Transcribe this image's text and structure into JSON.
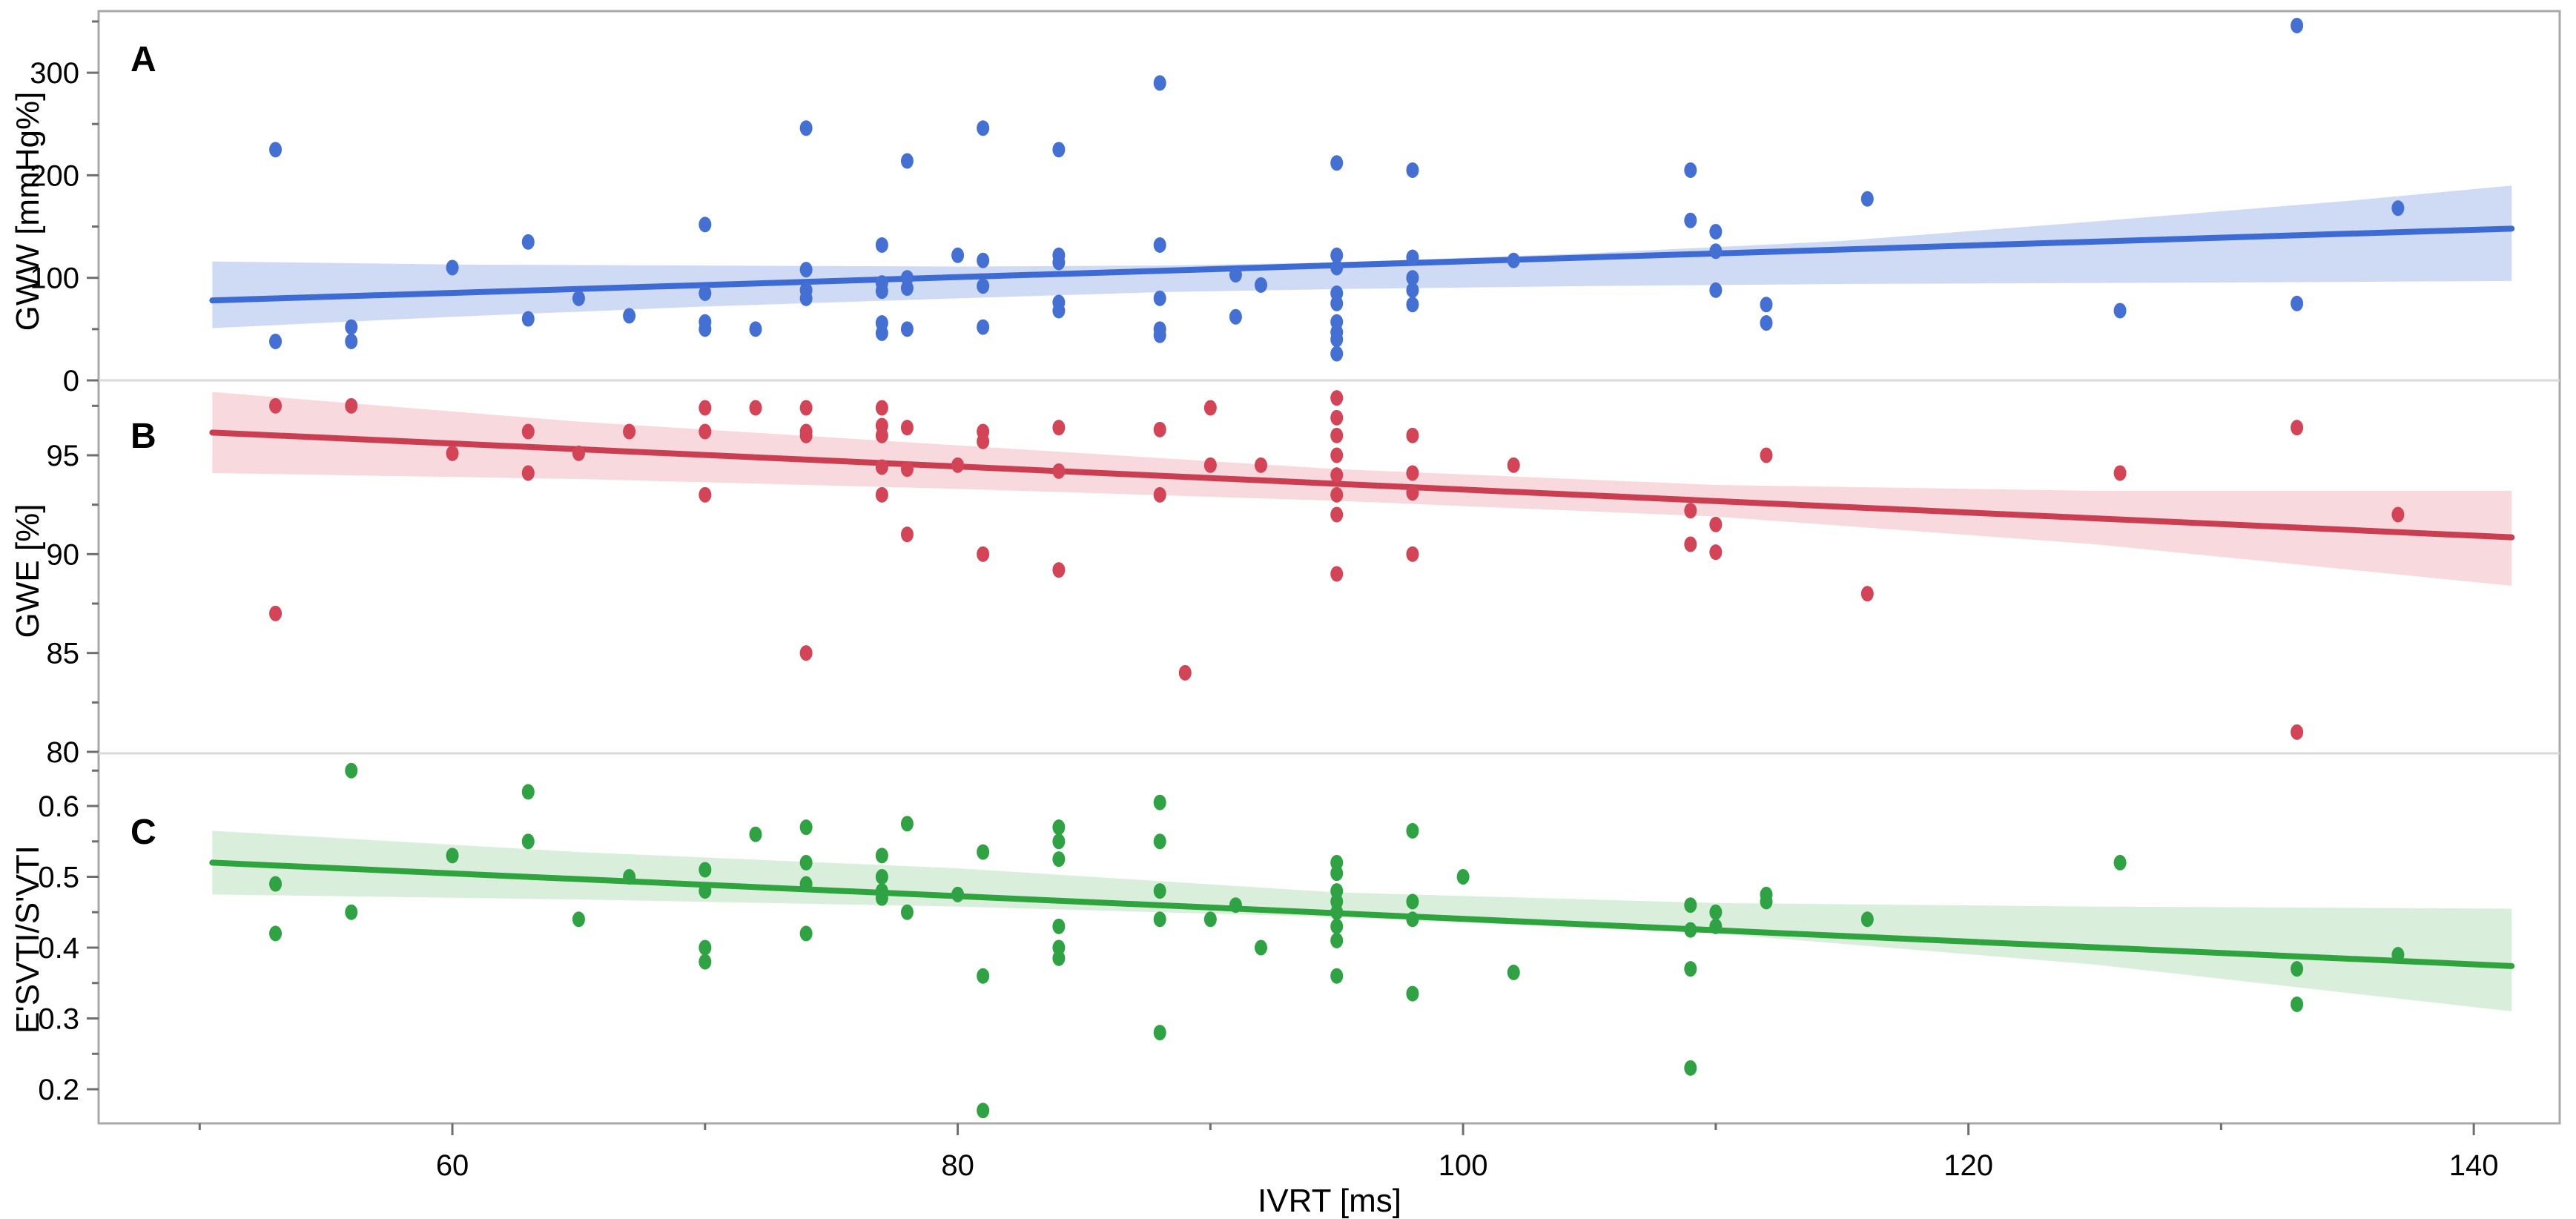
{
  "figure": {
    "x_axis": {
      "label": "IVRT [ms]",
      "ticks": [
        60,
        80,
        100,
        120,
        140
      ],
      "minor_ticks": [
        50,
        70,
        90,
        110,
        130
      ],
      "lim": [
        46,
        143.4
      ]
    },
    "frame_color": "#a9a9a9",
    "separator_color": "#d9d9d9",
    "tick_color": "#6e6e6e"
  },
  "chart_data": [
    {
      "type": "scatter",
      "panel_label": "A",
      "ylabel": "GWW [mmHg%]",
      "yticks": [
        0,
        100,
        200,
        300
      ],
      "yminor": [
        50,
        150,
        250,
        350
      ],
      "ylim": [
        0,
        360
      ],
      "colors": {
        "point": "#4470d4",
        "line": "#3d6bd3",
        "band": "#cfdbf4"
      },
      "points": [
        [
          53,
          225
        ],
        [
          53,
          38
        ],
        [
          56,
          52
        ],
        [
          56,
          38
        ],
        [
          60,
          110
        ],
        [
          63,
          135
        ],
        [
          63,
          60
        ],
        [
          65,
          80
        ],
        [
          67,
          63
        ],
        [
          70,
          152
        ],
        [
          70,
          85
        ],
        [
          70,
          57
        ],
        [
          70,
          50
        ],
        [
          72,
          50
        ],
        [
          74,
          246
        ],
        [
          74,
          108
        ],
        [
          74,
          88
        ],
        [
          74,
          80
        ],
        [
          77,
          132
        ],
        [
          77,
          95
        ],
        [
          77,
          87
        ],
        [
          77,
          56
        ],
        [
          77,
          46
        ],
        [
          78,
          214
        ],
        [
          78,
          100
        ],
        [
          78,
          90
        ],
        [
          78,
          50
        ],
        [
          80,
          122
        ],
        [
          81,
          246
        ],
        [
          81,
          117
        ],
        [
          81,
          92
        ],
        [
          81,
          52
        ],
        [
          84,
          225
        ],
        [
          84,
          122
        ],
        [
          84,
          115
        ],
        [
          84,
          76
        ],
        [
          84,
          68
        ],
        [
          88,
          290
        ],
        [
          88,
          132
        ],
        [
          88,
          80
        ],
        [
          88,
          50
        ],
        [
          88,
          44
        ],
        [
          91,
          103
        ],
        [
          91,
          62
        ],
        [
          92,
          93
        ],
        [
          95,
          212
        ],
        [
          95,
          122
        ],
        [
          95,
          110
        ],
        [
          95,
          85
        ],
        [
          95,
          75
        ],
        [
          95,
          57
        ],
        [
          95,
          47
        ],
        [
          95,
          40
        ],
        [
          95,
          26
        ],
        [
          98,
          205
        ],
        [
          98,
          120
        ],
        [
          98,
          100
        ],
        [
          98,
          88
        ],
        [
          98,
          74
        ],
        [
          102,
          117
        ],
        [
          109,
          205
        ],
        [
          109,
          156
        ],
        [
          110,
          145
        ],
        [
          110,
          126
        ],
        [
          110,
          88
        ],
        [
          112,
          74
        ],
        [
          112,
          56
        ],
        [
          116,
          177
        ],
        [
          126,
          68
        ],
        [
          133,
          346
        ],
        [
          133,
          75
        ],
        [
          137,
          168
        ]
      ],
      "fit_line": {
        "x1": 50.5,
        "y1": 78,
        "x2": 141.5,
        "y2": 148
      },
      "band": {
        "x": [
          50.5,
          60,
          70,
          80,
          88,
          95,
          105,
          115,
          125,
          135,
          141.5
        ],
        "top": [
          116,
          113,
          112,
          111,
          112,
          115,
          124,
          136,
          155,
          175,
          190
        ],
        "bottom": [
          51,
          62,
          72,
          80,
          86,
          89,
          92,
          94,
          95,
          96,
          97
        ]
      }
    },
    {
      "type": "scatter",
      "panel_label": "B",
      "ylabel": "GWE [%]",
      "yticks": [
        80,
        85,
        90,
        95
      ],
      "yminor": [
        82.5,
        87.5,
        92.5,
        97.5
      ],
      "ylim": [
        79.8,
        98.7
      ],
      "colors": {
        "point": "#d24456",
        "line": "#c93e50",
        "band": "#f7d9de"
      },
      "points": [
        [
          53,
          97.5
        ],
        [
          53,
          87
        ],
        [
          56,
          97.5
        ],
        [
          60,
          95.1
        ],
        [
          63,
          96.2
        ],
        [
          63,
          94.1
        ],
        [
          65,
          95.1
        ],
        [
          67,
          96.2
        ],
        [
          70,
          97.4
        ],
        [
          70,
          96.2
        ],
        [
          70,
          93
        ],
        [
          72,
          97.4
        ],
        [
          74,
          97.4
        ],
        [
          74,
          96.2
        ],
        [
          74,
          96
        ],
        [
          74,
          85
        ],
        [
          77,
          97.4
        ],
        [
          77,
          96.5
        ],
        [
          77,
          96
        ],
        [
          77,
          94.4
        ],
        [
          77,
          93
        ],
        [
          78,
          96.4
        ],
        [
          78,
          94.3
        ],
        [
          78,
          91
        ],
        [
          80,
          94.5
        ],
        [
          81,
          96.2
        ],
        [
          81,
          95.7
        ],
        [
          81,
          90
        ],
        [
          84,
          96.4
        ],
        [
          84,
          94.2
        ],
        [
          84,
          89.2
        ],
        [
          88,
          96.3
        ],
        [
          88,
          93
        ],
        [
          89,
          84
        ],
        [
          90,
          97.4
        ],
        [
          90,
          94.5
        ],
        [
          92,
          94.5
        ],
        [
          95,
          97.9
        ],
        [
          95,
          96.9
        ],
        [
          95,
          96
        ],
        [
          95,
          95
        ],
        [
          95,
          94
        ],
        [
          95,
          93
        ],
        [
          95,
          92
        ],
        [
          95,
          89
        ],
        [
          98,
          96
        ],
        [
          98,
          94.1
        ],
        [
          98,
          93.1
        ],
        [
          98,
          90
        ],
        [
          102,
          94.5
        ],
        [
          109,
          92.2
        ],
        [
          109,
          90.5
        ],
        [
          110,
          91.5
        ],
        [
          110,
          90.1
        ],
        [
          112,
          95
        ],
        [
          116,
          88
        ],
        [
          126,
          94.1
        ],
        [
          133,
          96.4
        ],
        [
          133,
          81
        ],
        [
          137,
          92
        ]
      ],
      "fit_line": {
        "x1": 50.5,
        "y1": 96.15,
        "x2": 141.5,
        "y2": 90.85
      },
      "band": {
        "x": [
          50.5,
          65,
          80,
          95,
          110,
          125,
          141.5
        ],
        "top": [
          98.2,
          96.7,
          95.5,
          94.3,
          93.5,
          93.2,
          93.2
        ],
        "bottom": [
          94.1,
          93.8,
          93.3,
          92.7,
          91.9,
          90.5,
          88.4
        ]
      }
    },
    {
      "type": "scatter",
      "panel_label": "C",
      "ylabel": "E'SVTI/S'VTI",
      "yticks": [
        0.2,
        0.3,
        0.4,
        0.5,
        0.6
      ],
      "yminor": [
        0.25,
        0.35,
        0.45,
        0.55,
        0.65
      ],
      "ylim": [
        0.152,
        0.671
      ],
      "colors": {
        "point": "#2fa344",
        "line": "#2ea33e",
        "band": "#d9efdb"
      },
      "points": [
        [
          53,
          0.49
        ],
        [
          53,
          0.42
        ],
        [
          56,
          0.65
        ],
        [
          56,
          0.45
        ],
        [
          60,
          0.53
        ],
        [
          63,
          0.62
        ],
        [
          63,
          0.55
        ],
        [
          65,
          0.44
        ],
        [
          67,
          0.5
        ],
        [
          70,
          0.51
        ],
        [
          70,
          0.48
        ],
        [
          70,
          0.4
        ],
        [
          70,
          0.38
        ],
        [
          72,
          0.56
        ],
        [
          74,
          0.57
        ],
        [
          74,
          0.52
        ],
        [
          74,
          0.49
        ],
        [
          74,
          0.42
        ],
        [
          77,
          0.53
        ],
        [
          77,
          0.5
        ],
        [
          77,
          0.48
        ],
        [
          77,
          0.47
        ],
        [
          78,
          0.575
        ],
        [
          78,
          0.45
        ],
        [
          80,
          0.475
        ],
        [
          81,
          0.535
        ],
        [
          81,
          0.36
        ],
        [
          81,
          0.17
        ],
        [
          84,
          0.57
        ],
        [
          84,
          0.55
        ],
        [
          84,
          0.525
        ],
        [
          84,
          0.43
        ],
        [
          84,
          0.4
        ],
        [
          84,
          0.385
        ],
        [
          88,
          0.605
        ],
        [
          88,
          0.55
        ],
        [
          88,
          0.48
        ],
        [
          88,
          0.44
        ],
        [
          88,
          0.28
        ],
        [
          90,
          0.44
        ],
        [
          91,
          0.46
        ],
        [
          92,
          0.4
        ],
        [
          95,
          0.52
        ],
        [
          95,
          0.505
        ],
        [
          95,
          0.48
        ],
        [
          95,
          0.465
        ],
        [
          95,
          0.45
        ],
        [
          95,
          0.43
        ],
        [
          95,
          0.41
        ],
        [
          95,
          0.36
        ],
        [
          98,
          0.565
        ],
        [
          98,
          0.465
        ],
        [
          98,
          0.44
        ],
        [
          98,
          0.335
        ],
        [
          100,
          0.5
        ],
        [
          102,
          0.365
        ],
        [
          109,
          0.46
        ],
        [
          109,
          0.425
        ],
        [
          109,
          0.37
        ],
        [
          109,
          0.23
        ],
        [
          110,
          0.45
        ],
        [
          110,
          0.43
        ],
        [
          112,
          0.475
        ],
        [
          112,
          0.465
        ],
        [
          116,
          0.44
        ],
        [
          126,
          0.52
        ],
        [
          133,
          0.37
        ],
        [
          133,
          0.32
        ],
        [
          137,
          0.39
        ]
      ],
      "fit_line": {
        "x1": 50.5,
        "y1": 0.52,
        "x2": 141.5,
        "y2": 0.374
      },
      "band": {
        "x": [
          50.5,
          65,
          80,
          95,
          110,
          125,
          141.5
        ],
        "top": [
          0.565,
          0.535,
          0.512,
          0.478,
          0.463,
          0.458,
          0.455
        ],
        "bottom": [
          0.475,
          0.468,
          0.458,
          0.443,
          0.42,
          0.376,
          0.31
        ]
      }
    }
  ]
}
